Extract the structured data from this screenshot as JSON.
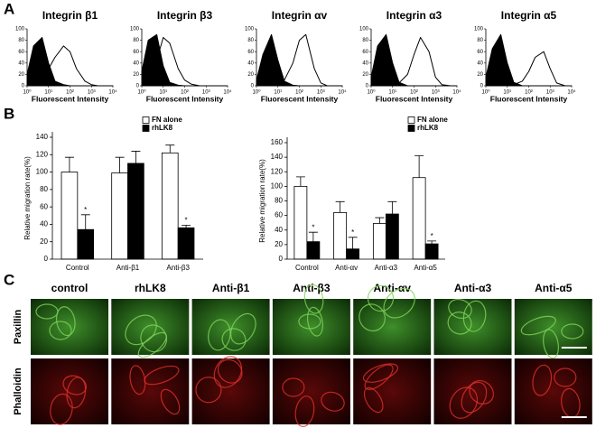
{
  "panel_labels": [
    "A",
    "B",
    "C"
  ],
  "chart_data": [
    {
      "type": "line",
      "title": "Integrin β1",
      "xlabel": "Fluorescent Intensity",
      "log_x": true,
      "x": [
        1,
        2,
        5,
        10,
        20,
        50,
        100,
        200,
        500,
        1000,
        2000,
        5000,
        10000
      ],
      "xlim": [
        1,
        10000
      ],
      "xticks": [
        {
          "value": 1,
          "label": "10⁰"
        },
        {
          "value": 10,
          "label": "10¹"
        },
        {
          "value": 100,
          "label": "10²"
        },
        {
          "value": 1000,
          "label": "10³"
        },
        {
          "value": 10000,
          "label": "10⁴"
        }
      ],
      "ylim": [
        0,
        100
      ],
      "yticks": [
        0,
        20,
        40,
        60,
        80,
        100
      ],
      "series": [
        {
          "color": "#000000",
          "fill": true,
          "values": [
            20,
            70,
            85,
            40,
            8,
            2,
            0,
            0,
            0,
            0,
            0,
            0,
            0
          ]
        },
        {
          "color": "#000000",
          "fill": false,
          "values": [
            0,
            5,
            15,
            30,
            50,
            70,
            60,
            30,
            8,
            2,
            0,
            0,
            0
          ]
        }
      ]
    },
    {
      "type": "line",
      "title": "Integrin β3",
      "xlabel": "Fluorescent Intensity",
      "log_x": true,
      "x": [
        1,
        2,
        5,
        10,
        20,
        50,
        100,
        200,
        500,
        1000,
        2000,
        5000,
        10000
      ],
      "xlim": [
        1,
        10000
      ],
      "xticks": [
        {
          "value": 1,
          "label": "10⁰"
        },
        {
          "value": 10,
          "label": "10¹"
        },
        {
          "value": 100,
          "label": "10²"
        },
        {
          "value": 1000,
          "label": "10³"
        },
        {
          "value": 10000,
          "label": "10⁴"
        }
      ],
      "ylim": [
        0,
        100
      ],
      "yticks": [
        0,
        20,
        40,
        60,
        80,
        100
      ],
      "series": [
        {
          "color": "#000000",
          "fill": true,
          "values": [
            25,
            80,
            90,
            35,
            6,
            1,
            0,
            0,
            0,
            0,
            0,
            0,
            0
          ]
        },
        {
          "color": "#000000",
          "fill": false,
          "values": [
            0,
            10,
            45,
            85,
            75,
            30,
            10,
            3,
            0,
            0,
            0,
            0,
            0
          ]
        }
      ]
    },
    {
      "type": "line",
      "title": "Integrin αv",
      "xlabel": "Fluorescent Intensity",
      "log_x": true,
      "x": [
        1,
        2,
        5,
        10,
        20,
        50,
        100,
        200,
        500,
        1000,
        2000,
        5000,
        10000
      ],
      "xlim": [
        1,
        10000
      ],
      "xticks": [
        {
          "value": 1,
          "label": "10⁰"
        },
        {
          "value": 10,
          "label": "10¹"
        },
        {
          "value": 100,
          "label": "10²"
        },
        {
          "value": 1000,
          "label": "10³"
        },
        {
          "value": 10000,
          "label": "10⁴"
        }
      ],
      "ylim": [
        0,
        100
      ],
      "yticks": [
        0,
        20,
        40,
        60,
        80,
        100
      ],
      "series": [
        {
          "color": "#000000",
          "fill": true,
          "values": [
            10,
            55,
            90,
            45,
            8,
            1,
            0,
            0,
            0,
            0,
            0,
            0,
            0
          ]
        },
        {
          "color": "#000000",
          "fill": false,
          "values": [
            0,
            0,
            0,
            2,
            10,
            40,
            80,
            90,
            30,
            5,
            0,
            0,
            0
          ]
        }
      ]
    },
    {
      "type": "line",
      "title": "Integrin α3",
      "xlabel": "Fluorescent Intensity",
      "log_x": true,
      "x": [
        1,
        2,
        5,
        10,
        20,
        50,
        100,
        200,
        500,
        1000,
        2000,
        5000,
        10000
      ],
      "xlim": [
        1,
        10000
      ],
      "xticks": [
        {
          "value": 1,
          "label": "10⁰"
        },
        {
          "value": 10,
          "label": "10¹"
        },
        {
          "value": 100,
          "label": "10²"
        },
        {
          "value": 1000,
          "label": "10³"
        },
        {
          "value": 10000,
          "label": "10⁴"
        }
      ],
      "ylim": [
        0,
        100
      ],
      "yticks": [
        0,
        20,
        40,
        60,
        80,
        100
      ],
      "series": [
        {
          "color": "#000000",
          "fill": true,
          "values": [
            15,
            70,
            90,
            40,
            6,
            0,
            0,
            0,
            0,
            0,
            0,
            0,
            0
          ]
        },
        {
          "color": "#000000",
          "fill": false,
          "values": [
            0,
            0,
            0,
            1,
            5,
            20,
            55,
            85,
            60,
            15,
            2,
            0,
            0
          ]
        }
      ]
    },
    {
      "type": "line",
      "title": "Integrin α5",
      "xlabel": "Fluorescent Intensity",
      "log_x": true,
      "x": [
        1,
        2,
        5,
        10,
        20,
        50,
        100,
        200,
        500,
        1000,
        2000,
        5000,
        10000
      ],
      "xlim": [
        1,
        10000
      ],
      "xticks": [
        {
          "value": 1,
          "label": "10⁰"
        },
        {
          "value": 10,
          "label": "10¹"
        },
        {
          "value": 100,
          "label": "10²"
        },
        {
          "value": 1000,
          "label": "10³"
        },
        {
          "value": 10000,
          "label": "10⁴"
        }
      ],
      "ylim": [
        0,
        100
      ],
      "yticks": [
        0,
        20,
        40,
        60,
        80,
        100
      ],
      "series": [
        {
          "color": "#000000",
          "fill": true,
          "values": [
            15,
            65,
            90,
            40,
            6,
            0,
            0,
            0,
            0,
            0,
            0,
            0,
            0
          ]
        },
        {
          "color": "#000000",
          "fill": false,
          "values": [
            0,
            0,
            0,
            0,
            2,
            8,
            25,
            50,
            60,
            30,
            5,
            0,
            0
          ]
        }
      ]
    },
    {
      "type": "bar",
      "ylabel": "Relative migration rate(%)",
      "categories": [
        "Control",
        "Anti-β1",
        "Anti-β3"
      ],
      "ylim": [
        0,
        140
      ],
      "yticks": [
        0,
        20,
        40,
        60,
        80,
        100,
        120,
        140
      ],
      "series": [
        {
          "name": "FN alone",
          "color": "#ffffff",
          "values": [
            100,
            99,
            122
          ],
          "errors": [
            17,
            18,
            9
          ]
        },
        {
          "name": "rhLK8",
          "color": "#000000",
          "values": [
            34,
            110,
            36
          ],
          "errors": [
            17,
            14,
            3
          ],
          "markers": [
            "*",
            null,
            "*"
          ]
        }
      ]
    },
    {
      "type": "bar",
      "ylabel": "Relative migration rate(%)",
      "categories": [
        "Control",
        "Anti-αv",
        "Anti-α3",
        "Anti-α5"
      ],
      "ylim": [
        0,
        160
      ],
      "yticks": [
        0,
        20,
        40,
        60,
        80,
        100,
        120,
        140,
        160
      ],
      "series": [
        {
          "name": "FN alone",
          "color": "#ffffff",
          "values": [
            100,
            64,
            49,
            112
          ],
          "errors": [
            13,
            15,
            8,
            30
          ]
        },
        {
          "name": "rhLK8",
          "color": "#000000",
          "values": [
            24,
            14,
            62,
            21
          ],
          "errors": [
            13,
            16,
            17,
            4
          ],
          "markers": [
            "*",
            "*",
            null,
            "*"
          ]
        }
      ]
    }
  ],
  "microscopy": {
    "columns": [
      "control",
      "rhLK8",
      "Anti-β1",
      "Anti-β3",
      "Anti-αv",
      "Anti-α3",
      "Anti-α5"
    ],
    "rows": [
      "Paxillin",
      "Phalloidin"
    ]
  }
}
